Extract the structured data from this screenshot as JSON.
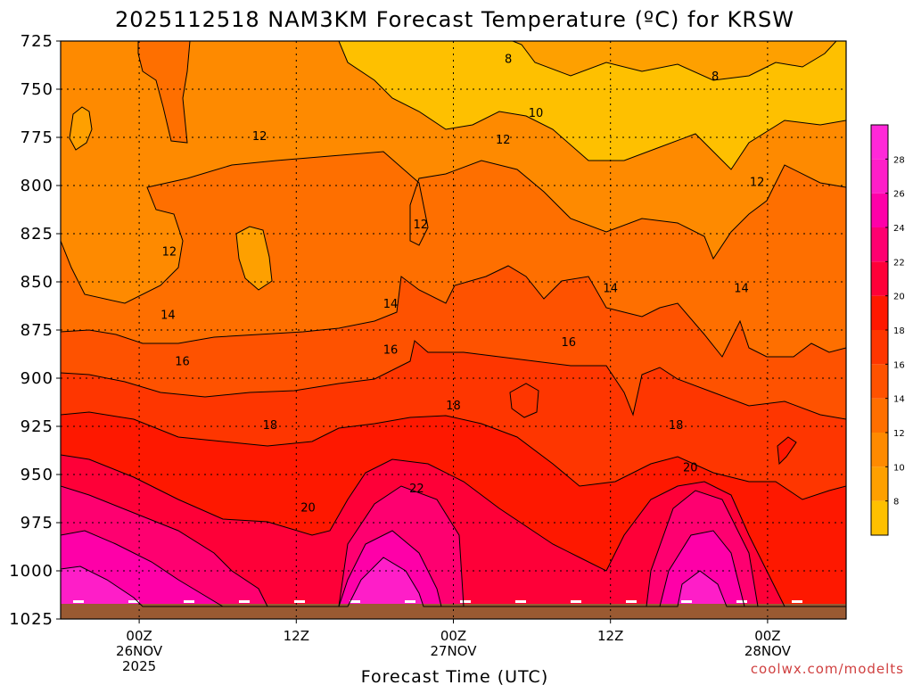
{
  "title": "2025112518 NAM3KM Forecast Temperature (ºC) for KRSW",
  "x_axis_title": "Forecast Time (UTC)",
  "credit": "coolwx.com/modelts",
  "colors": {
    "band_6": "#fec000",
    "band_8": "#fea000",
    "band_10": "#fe8a00",
    "band_12": "#fe6f00",
    "band_14": "#fe5200",
    "band_16": "#fe3600",
    "band_18": "#fe1800",
    "band_20": "#fe0038",
    "band_22": "#fe0070",
    "band_24": "#fe00a8",
    "band_26": "#fe1ec8",
    "ground": "#9a5a32",
    "credit_color": "#d04040"
  },
  "chart_data": {
    "type": "contour",
    "variable": "Temperature (ºC)",
    "y_axis": {
      "ticks": [
        "725",
        "750",
        "775",
        "800",
        "825",
        "850",
        "875",
        "900",
        "925",
        "950",
        "975",
        "1000",
        "1025"
      ],
      "range": [
        725,
        1025
      ],
      "inverted": true
    },
    "x_axis": {
      "ticks": [
        {
          "label": "00Z",
          "sub": [
            "26NOV",
            "2025"
          ],
          "hour": 6
        },
        {
          "label": "12Z",
          "sub": [],
          "hour": 18
        },
        {
          "label": "00Z",
          "sub": [
            "27NOV"
          ],
          "hour": 30
        },
        {
          "label": "12Z",
          "sub": [],
          "hour": 42
        },
        {
          "label": "00Z",
          "sub": [
            "28NOV"
          ],
          "hour": 54
        }
      ],
      "range_hours": [
        0,
        60
      ]
    },
    "colorbar": {
      "ticks": [
        "8",
        "10",
        "12",
        "14",
        "16",
        "18",
        "20",
        "22",
        "24",
        "26",
        "28"
      ],
      "range": [
        6,
        30
      ]
    },
    "grid": true,
    "contour_labels": [
      {
        "text": "8",
        "hour": 34.2,
        "p": 734
      },
      {
        "text": "8",
        "hour": 50.0,
        "p": 743
      },
      {
        "text": "10",
        "hour": 36.3,
        "p": 762
      },
      {
        "text": "12",
        "hour": 15.2,
        "p": 774
      },
      {
        "text": "12",
        "hour": 33.8,
        "p": 776
      },
      {
        "text": "12",
        "hour": 53.2,
        "p": 798
      },
      {
        "text": "12",
        "hour": 27.5,
        "p": 820
      },
      {
        "text": "12",
        "hour": 8.3,
        "p": 834
      },
      {
        "text": "14",
        "hour": 8.2,
        "p": 867
      },
      {
        "text": "14",
        "hour": 25.2,
        "p": 861
      },
      {
        "text": "14",
        "hour": 42.0,
        "p": 853
      },
      {
        "text": "14",
        "hour": 52.0,
        "p": 853
      },
      {
        "text": "16",
        "hour": 9.3,
        "p": 891
      },
      {
        "text": "16",
        "hour": 25.2,
        "p": 885
      },
      {
        "text": "16",
        "hour": 38.8,
        "p": 881
      },
      {
        "text": "18",
        "hour": 30.0,
        "p": 914
      },
      {
        "text": "18",
        "hour": 16.0,
        "p": 924
      },
      {
        "text": "18",
        "hour": 47.0,
        "p": 924
      },
      {
        "text": "20",
        "hour": 18.9,
        "p": 967
      },
      {
        "text": "20",
        "hour": 48.1,
        "p": 946
      },
      {
        "text": "22",
        "hour": 27.2,
        "p": 957
      }
    ],
    "surface_pressure_approx": 1016
  }
}
